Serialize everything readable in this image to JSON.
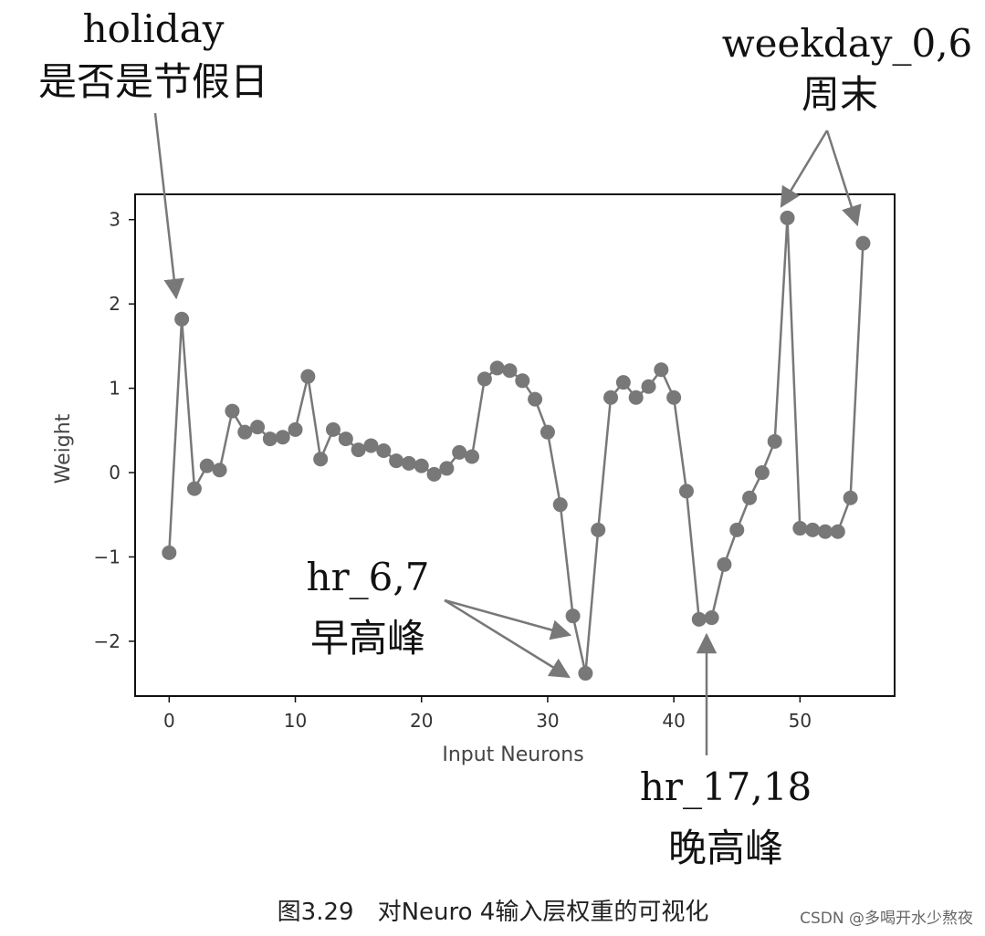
{
  "chart_data": {
    "type": "line",
    "xlabel": "Input Neurons",
    "ylabel": "Weight",
    "xlim": [
      -2.7,
      57.5
    ],
    "ylim": [
      -2.65,
      3.3
    ],
    "xticks": [
      0,
      10,
      20,
      30,
      40,
      50
    ],
    "yticks": [
      -2,
      -1,
      0,
      1,
      2,
      3
    ],
    "yticklabels": [
      "−2",
      "−1",
      "0",
      "1",
      "2",
      "3"
    ],
    "grid": false,
    "series_color": "#787878",
    "x": [
      0,
      1,
      2,
      3,
      4,
      5,
      6,
      7,
      8,
      9,
      10,
      11,
      12,
      13,
      14,
      15,
      16,
      17,
      18,
      19,
      20,
      21,
      22,
      23,
      24,
      25,
      26,
      27,
      28,
      29,
      30,
      31,
      32,
      33,
      34,
      35,
      36,
      37,
      38,
      39,
      40,
      41,
      42,
      43,
      44,
      45,
      46,
      47,
      48,
      49,
      50,
      51,
      52,
      53,
      54,
      55
    ],
    "values": [
      -0.95,
      1.82,
      -0.19,
      0.08,
      0.03,
      0.73,
      0.48,
      0.54,
      0.4,
      0.42,
      0.51,
      1.14,
      0.16,
      0.51,
      0.4,
      0.27,
      0.32,
      0.26,
      0.14,
      0.11,
      0.08,
      -0.02,
      0.05,
      0.24,
      0.19,
      1.11,
      1.24,
      1.21,
      1.09,
      0.87,
      0.48,
      -0.38,
      -1.7,
      -2.38,
      -0.68,
      0.89,
      1.07,
      0.89,
      1.02,
      1.22,
      0.89,
      -0.22,
      -1.74,
      -1.72,
      -1.09,
      -0.68,
      -0.3,
      0.0,
      0.37,
      3.02,
      -0.66,
      -0.68,
      -0.7,
      -0.7,
      -0.3,
      2.72
    ],
    "annotations": [
      {
        "lines": [
          "holiday",
          "是否是节假日"
        ],
        "targets": [
          0.5
        ]
      },
      {
        "lines": [
          "weekday_0,6",
          "周末"
        ],
        "targets": [
          49,
          55
        ]
      },
      {
        "lines": [
          "hr_6,7",
          "早高峰"
        ],
        "targets": [
          32,
          33
        ]
      },
      {
        "lines": [
          "hr_17,18",
          "晚高峰"
        ],
        "targets": [
          42.5
        ]
      }
    ]
  },
  "caption": "图3.29　对Neuro 4输入层权重的可视化",
  "watermark": "CSDN @多喝开水少熬夜"
}
